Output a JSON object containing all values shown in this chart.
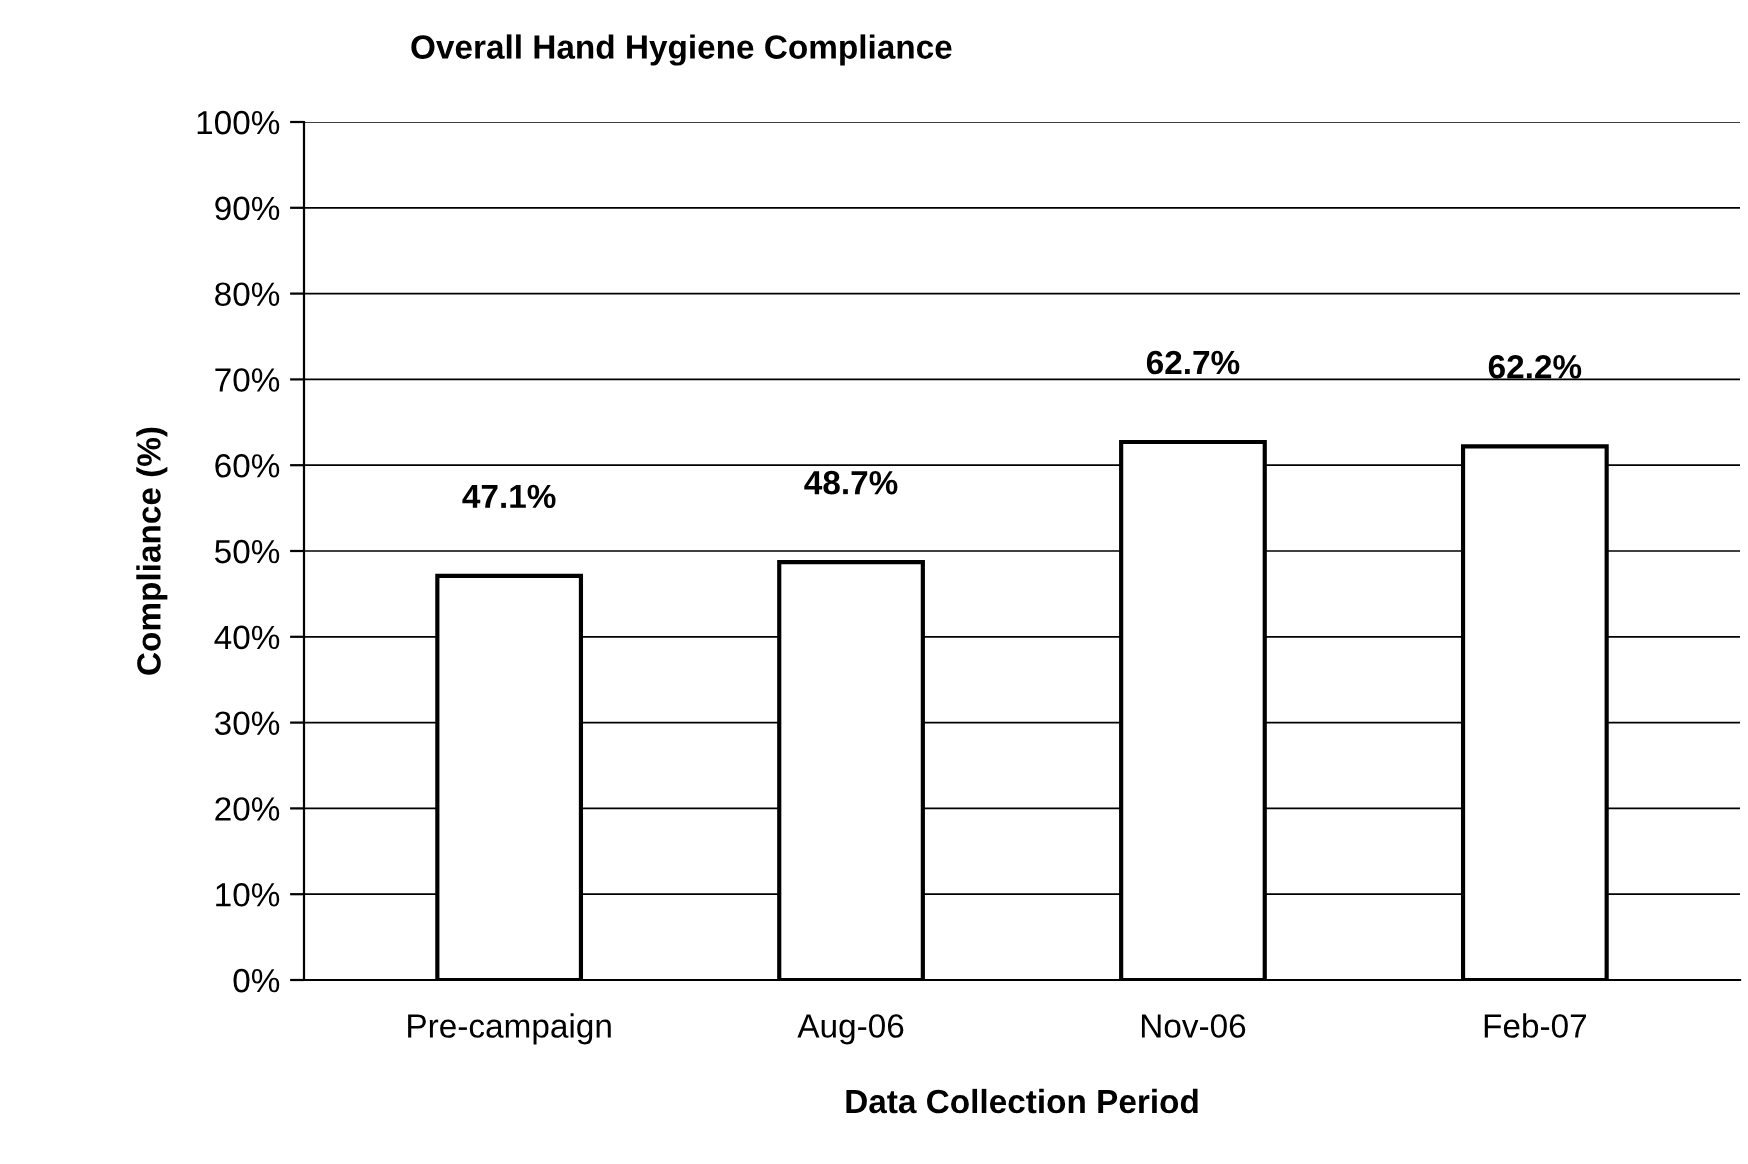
{
  "chart_data": {
    "type": "bar",
    "title": "Overall Hand Hygiene Compliance",
    "xlabel": "Data Collection Period",
    "ylabel": "Compliance (%)",
    "categories": [
      "Pre-campaign",
      "Aug-06",
      "Nov-06",
      "Feb-07"
    ],
    "values": [
      47.1,
      48.7,
      62.7,
      62.2
    ],
    "value_labels": [
      "47.1%",
      "48.7%",
      "62.7%",
      "62.2%"
    ],
    "color": "#ffffff",
    "ylim": [
      0,
      100
    ],
    "yticks": [
      {
        "value": 0,
        "label": "0%"
      },
      {
        "value": 10,
        "label": "10%"
      },
      {
        "value": 20,
        "label": "20%"
      },
      {
        "value": 30,
        "label": "30%"
      },
      {
        "value": 40,
        "label": "40%"
      },
      {
        "value": 50,
        "label": "50%"
      },
      {
        "value": 60,
        "label": "60%"
      },
      {
        "value": 70,
        "label": "70%"
      },
      {
        "value": 80,
        "label": "80%"
      },
      {
        "value": 90,
        "label": "90%"
      },
      {
        "value": 100,
        "label": "100%"
      }
    ],
    "grid": "y",
    "legend": false
  }
}
